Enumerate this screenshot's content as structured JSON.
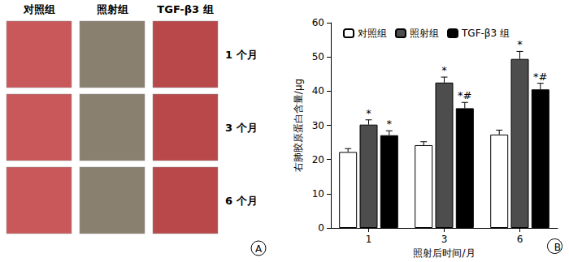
{
  "panel_a": {
    "columns": [
      "对照组",
      "照射组",
      "TGF-β3 组"
    ],
    "rows": [
      "1 个月",
      "3 个月",
      "6 个月"
    ],
    "label": "A"
  },
  "chart_data": {
    "type": "bar",
    "label": "B",
    "categories": [
      "1",
      "3",
      "6"
    ],
    "series": [
      {
        "name": "对照组",
        "color": "#ffffff",
        "values": [
          22.2,
          24.2,
          27.3
        ],
        "errors": [
          1.0,
          1.0,
          1.3
        ]
      },
      {
        "name": "照射组",
        "color": "#4d4d4d",
        "values": [
          30.2,
          42.5,
          49.4
        ],
        "errors": [
          1.4,
          1.6,
          2.2
        ],
        "marks": [
          "*",
          "*",
          "*"
        ]
      },
      {
        "name": "TGF-β3 组",
        "color": "#000000",
        "values": [
          27.1,
          35.0,
          40.5
        ],
        "errors": [
          1.3,
          1.7,
          1.8
        ],
        "marks": [
          "*",
          "*#",
          "*#"
        ]
      }
    ],
    "x_label": "照射后时间/月",
    "y_label": "右肺胶原蛋白含量/μg",
    "ylim": [
      0,
      60
    ],
    "yticks": [
      0,
      10,
      20,
      30,
      40,
      50,
      60
    ],
    "grid": false,
    "legend": "top"
  }
}
